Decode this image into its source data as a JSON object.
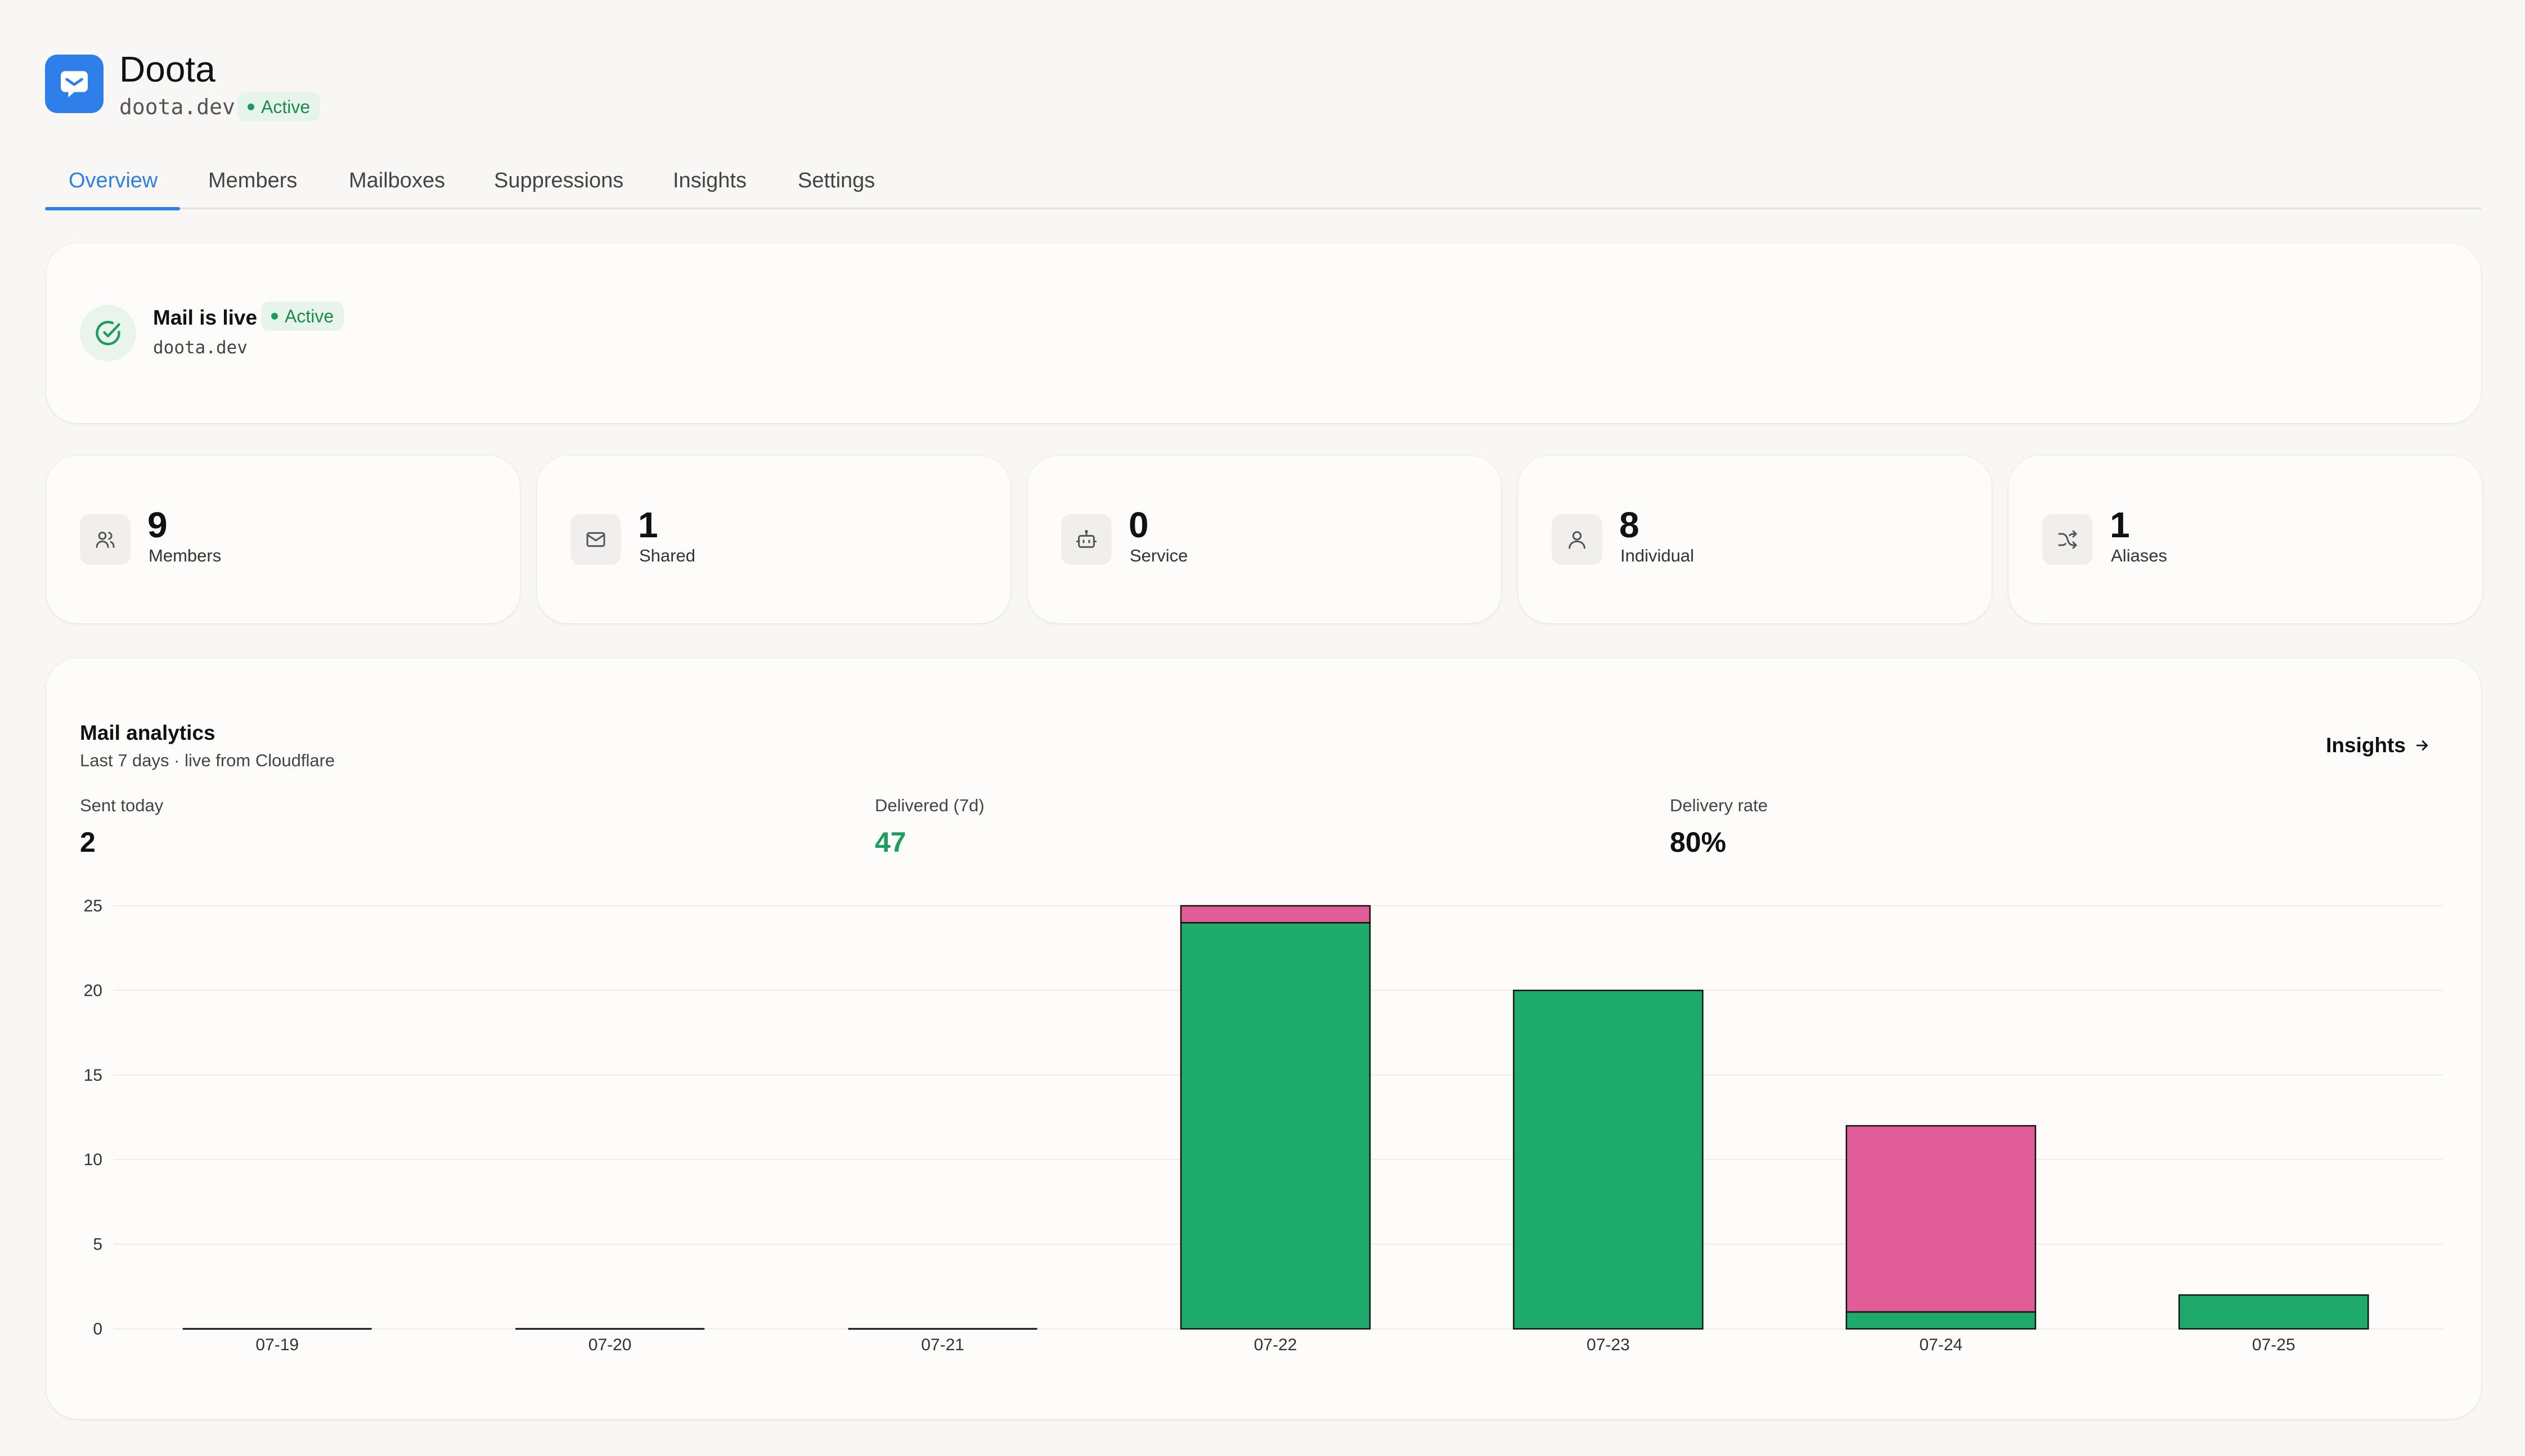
{
  "app": {
    "name": "Doota",
    "domain": "doota.dev",
    "status": "Active"
  },
  "tabs": [
    {
      "label": "Overview",
      "active": true
    },
    {
      "label": "Members"
    },
    {
      "label": "Mailboxes"
    },
    {
      "label": "Suppressions"
    },
    {
      "label": "Insights"
    },
    {
      "label": "Settings"
    }
  ],
  "mail_status": {
    "title": "Mail is live",
    "badge": "Active",
    "domain": "doota.dev",
    "icon": "check-circle-icon"
  },
  "stats": [
    {
      "value": "9",
      "label": "Members",
      "icon": "users-icon"
    },
    {
      "value": "1",
      "label": "Shared",
      "icon": "mail-icon"
    },
    {
      "value": "0",
      "label": "Service",
      "icon": "bot-icon"
    },
    {
      "value": "8",
      "label": "Individual",
      "icon": "user-icon"
    },
    {
      "value": "1",
      "label": "Aliases",
      "icon": "shuffle-icon"
    }
  ],
  "analytics": {
    "title": "Mail analytics",
    "subtitle": "Last 7 days · live from Cloudflare",
    "insights_link": "Insights",
    "metrics": [
      {
        "label": "Sent today",
        "value": "2"
      },
      {
        "label": "Delivered (7d)",
        "value": "47"
      },
      {
        "label": "Delivery rate",
        "value": "80%"
      }
    ]
  },
  "colors": {
    "accent": "#2f7fea",
    "delivered": "#1eaa6b",
    "failed": "#e05d98",
    "active_green": "#1d8a50"
  },
  "chart_data": {
    "type": "bar",
    "stacked": true,
    "categories": [
      "07-19",
      "07-20",
      "07-21",
      "07-22",
      "07-23",
      "07-24",
      "07-25"
    ],
    "series": [
      {
        "values": [
          0,
          0,
          0,
          24,
          20,
          1,
          2
        ],
        "color": "#1eaa6b"
      },
      {
        "values": [
          0,
          0,
          0,
          1,
          0,
          11,
          0
        ],
        "color": "#e05d98"
      }
    ],
    "yticks": [
      0,
      5,
      10,
      15,
      20,
      25
    ],
    "ylim": [
      0,
      25
    ],
    "grid": true
  }
}
